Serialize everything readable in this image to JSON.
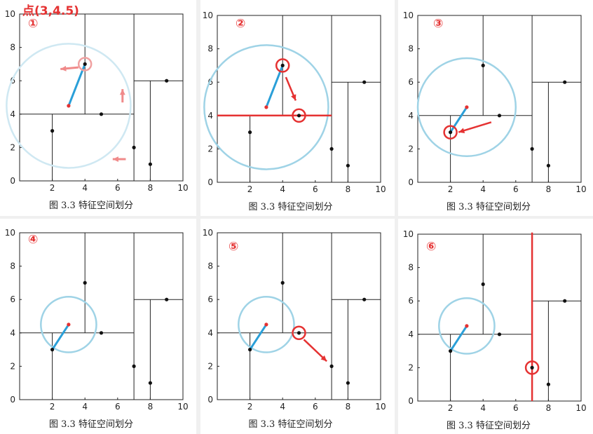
{
  "query_label": "点(3,4.5)",
  "caption": "图 3.3    特征空间划分",
  "axis_ticks": [
    "0",
    "2",
    "4",
    "6",
    "8",
    "10"
  ],
  "colors": {
    "red": "#e53232",
    "circle": "#9fd3e6",
    "line": "#2a9fd8",
    "pink": "#f08a8a"
  },
  "points": [
    [
      2,
      3
    ],
    [
      4,
      7
    ],
    [
      5,
      4
    ],
    [
      7,
      2
    ],
    [
      8,
      1
    ],
    [
      9,
      6
    ]
  ],
  "query": [
    3,
    4.5
  ],
  "panels": [
    {
      "label": "①"
    },
    {
      "label": "②"
    },
    {
      "label": "③"
    },
    {
      "label": "④"
    },
    {
      "label": "⑤"
    },
    {
      "label": "⑥"
    }
  ]
}
